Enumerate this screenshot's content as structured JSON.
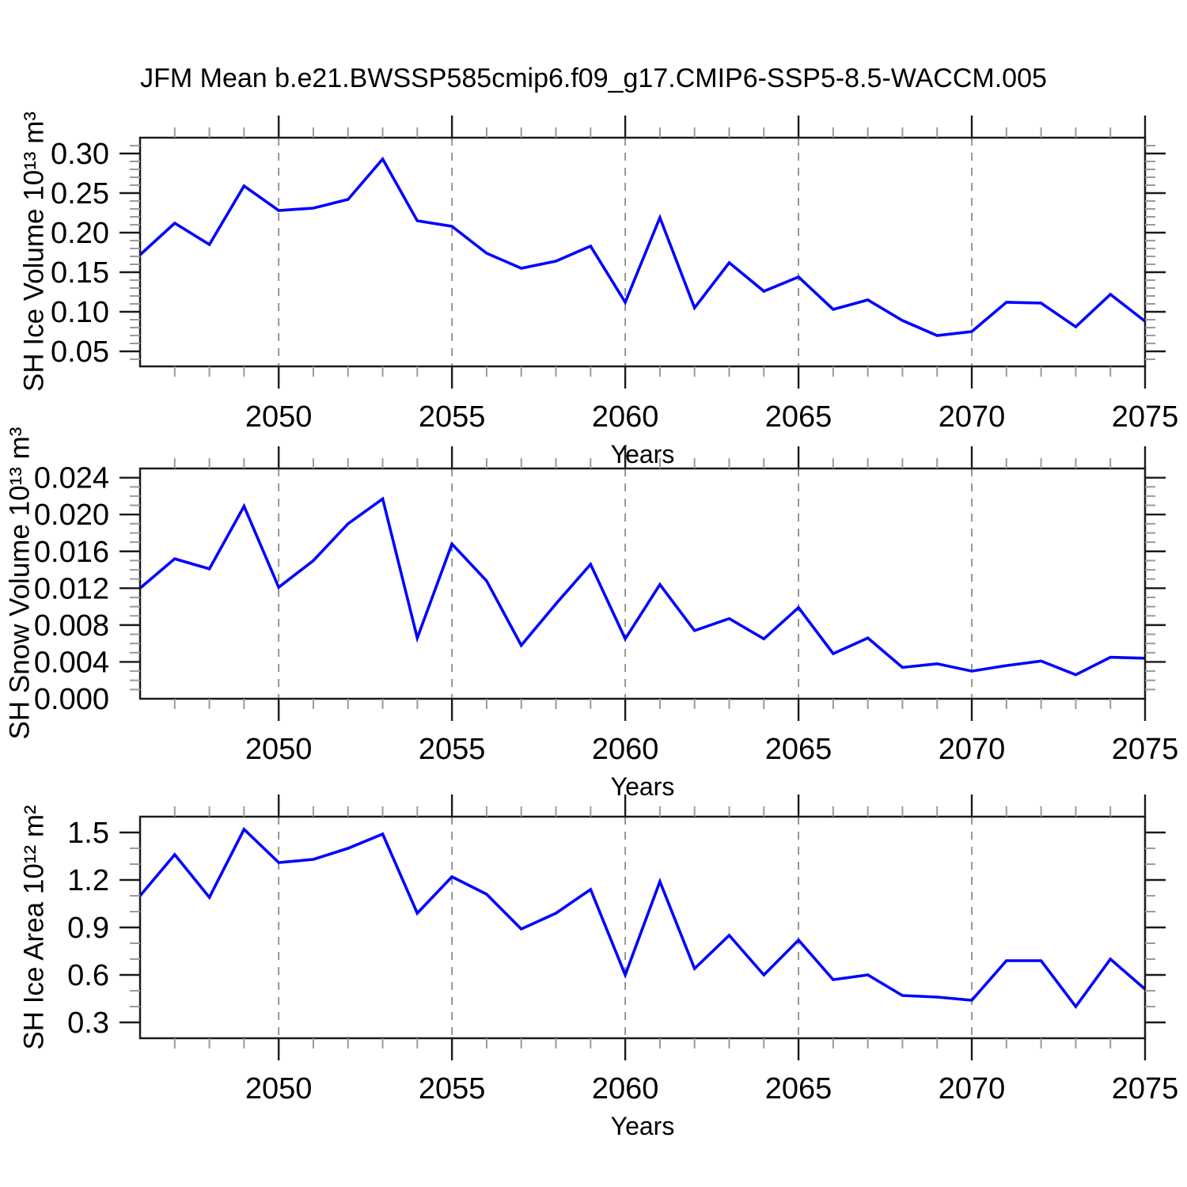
{
  "title": "JFM Mean b.e21.BWSSP585cmip6.f09_g17.CMIP6-SSP5-8.5-WACCM.005",
  "line_color": "#0000ff",
  "gridline_color": "#8c8c8c",
  "chart_data": [
    {
      "type": "line",
      "name": "sh-ice-volume",
      "ylabel": "SH Ice Volume 10¹³ m³",
      "xlabel": "Years",
      "x": [
        2046,
        2047,
        2048,
        2049,
        2050,
        2051,
        2052,
        2053,
        2054,
        2055,
        2056,
        2057,
        2058,
        2059,
        2060,
        2061,
        2062,
        2063,
        2064,
        2065,
        2066,
        2067,
        2068,
        2069,
        2070,
        2071,
        2072,
        2073,
        2074,
        2075
      ],
      "values": [
        0.172,
        0.212,
        0.185,
        0.259,
        0.228,
        0.231,
        0.242,
        0.293,
        0.215,
        0.208,
        0.174,
        0.155,
        0.164,
        0.183,
        0.112,
        0.219,
        0.105,
        0.162,
        0.126,
        0.144,
        0.103,
        0.115,
        0.089,
        0.07,
        0.075,
        0.112,
        0.111,
        0.081,
        0.122,
        0.088
      ],
      "xlim": [
        2046,
        2075
      ],
      "ylim": [
        0.031,
        0.32
      ],
      "xticks": [
        2050,
        2055,
        2060,
        2065,
        2070,
        2075
      ],
      "xminor_step": 1,
      "yticks": [
        0.05,
        0.1,
        0.15,
        0.2,
        0.25,
        0.3
      ],
      "ytick_decimals": 2,
      "yminor_step": 0.01,
      "grid_x": [
        2050,
        2055,
        2060,
        2065,
        2070
      ]
    },
    {
      "type": "line",
      "name": "sh-snow-volume",
      "ylabel": "SH Snow Volume 10¹³ m³",
      "xlabel": "Years",
      "x": [
        2046,
        2047,
        2048,
        2049,
        2050,
        2051,
        2052,
        2053,
        2054,
        2055,
        2056,
        2057,
        2058,
        2059,
        2060,
        2061,
        2062,
        2063,
        2064,
        2065,
        2066,
        2067,
        2068,
        2069,
        2070,
        2071,
        2072,
        2073,
        2074,
        2075
      ],
      "values": [
        0.012,
        0.0152,
        0.0141,
        0.0209,
        0.0121,
        0.015,
        0.019,
        0.0217,
        0.0066,
        0.0168,
        0.0128,
        0.0058,
        0.0103,
        0.0146,
        0.0065,
        0.0124,
        0.0074,
        0.0087,
        0.0065,
        0.0099,
        0.0049,
        0.0066,
        0.0034,
        0.0038,
        0.003,
        0.0036,
        0.0041,
        0.0026,
        0.0045,
        0.0044
      ],
      "xlim": [
        2046,
        2075
      ],
      "ylim": [
        0.0,
        0.025
      ],
      "xticks": [
        2050,
        2055,
        2060,
        2065,
        2070,
        2075
      ],
      "xminor_step": 1,
      "yticks": [
        0.0,
        0.004,
        0.008,
        0.012,
        0.016,
        0.02,
        0.024
      ],
      "ytick_decimals": 3,
      "yminor_step": 0.001,
      "grid_x": [
        2050,
        2055,
        2060,
        2065,
        2070
      ]
    },
    {
      "type": "line",
      "name": "sh-ice-area",
      "ylabel": "SH Ice Area 10¹² m²",
      "xlabel": "Years",
      "x": [
        2046,
        2047,
        2048,
        2049,
        2050,
        2051,
        2052,
        2053,
        2054,
        2055,
        2056,
        2057,
        2058,
        2059,
        2060,
        2061,
        2062,
        2063,
        2064,
        2065,
        2066,
        2067,
        2068,
        2069,
        2070,
        2071,
        2072,
        2073,
        2074,
        2075
      ],
      "values": [
        1.1,
        1.36,
        1.09,
        1.52,
        1.31,
        1.33,
        1.4,
        1.49,
        0.99,
        1.22,
        1.11,
        0.89,
        0.99,
        1.14,
        0.6,
        1.19,
        0.64,
        0.85,
        0.6,
        0.82,
        0.57,
        0.6,
        0.47,
        0.46,
        0.44,
        0.69,
        0.69,
        0.4,
        0.7,
        0.51
      ],
      "xlim": [
        2046,
        2075
      ],
      "ylim": [
        0.2,
        1.6
      ],
      "xticks": [
        2050,
        2055,
        2060,
        2065,
        2070,
        2075
      ],
      "xminor_step": 1,
      "yticks": [
        0.3,
        0.6,
        0.9,
        1.2,
        1.5
      ],
      "ytick_decimals": 1,
      "yminor_step": 0.1,
      "grid_x": [
        2050,
        2055,
        2060,
        2065,
        2070
      ]
    }
  ]
}
